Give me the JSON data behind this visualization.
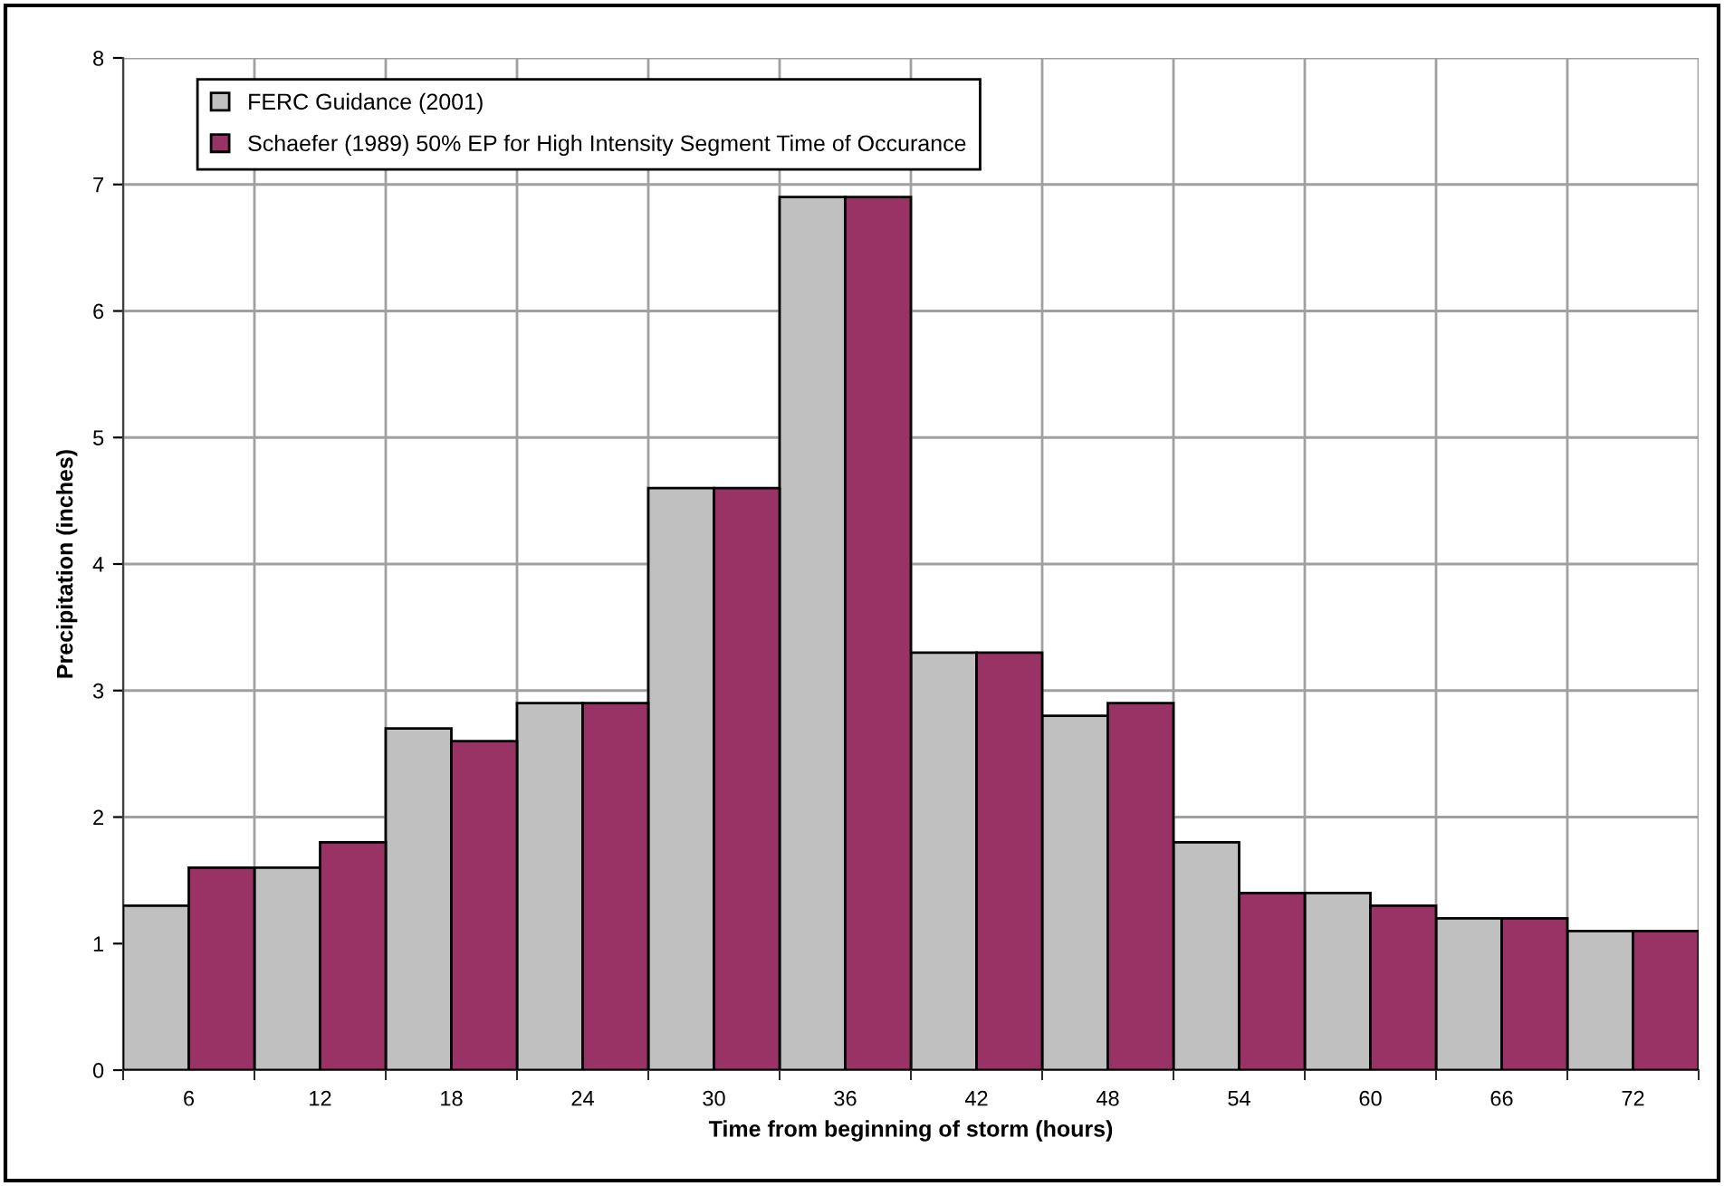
{
  "chart_data": {
    "type": "bar",
    "xlabel": "Time from beginning of storm (hours)",
    "ylabel": "Precipitation (inches)",
    "categories": [
      "6",
      "12",
      "18",
      "24",
      "30",
      "36",
      "42",
      "48",
      "54",
      "60",
      "66",
      "72"
    ],
    "series": [
      {
        "name": "FERC Guidance (2001)",
        "color": "#c0c0c0",
        "values": [
          1.3,
          1.6,
          2.7,
          2.9,
          4.6,
          6.9,
          3.3,
          2.8,
          1.8,
          1.4,
          1.2,
          1.1
        ]
      },
      {
        "name": "Schaefer (1989) 50% EP for High Intensity Segment Time of Occurance",
        "color": "#993366",
        "values": [
          1.6,
          1.8,
          2.6,
          2.9,
          4.6,
          6.9,
          3.3,
          2.9,
          1.4,
          1.3,
          1.2,
          1.1
        ]
      }
    ],
    "ylim": [
      0,
      8
    ],
    "yticks": [
      0,
      1,
      2,
      3,
      4,
      5,
      6,
      7,
      8
    ],
    "grid": true,
    "legend": "top left"
  }
}
